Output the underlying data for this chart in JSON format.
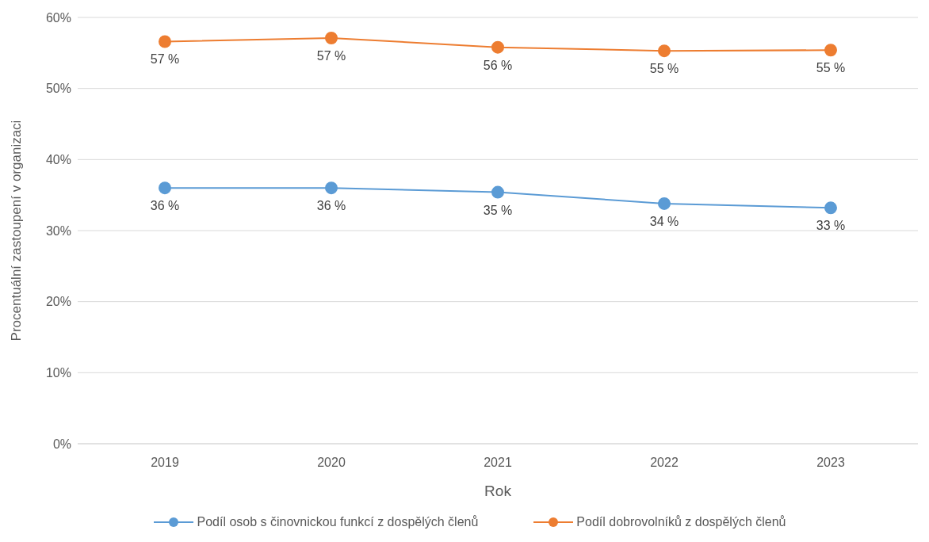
{
  "chart_data": {
    "type": "line",
    "xlabel": "Rok",
    "ylabel": "Procentuální zastoupení v organizaci",
    "categories": [
      "2019",
      "2020",
      "2021",
      "2022",
      "2023"
    ],
    "series": [
      {
        "name": "Podíl osob s činovnickou funkcí z dospělých členů",
        "color": "#5b9bd5",
        "values": [
          36.0,
          36.0,
          35.4,
          33.8,
          33.2
        ],
        "value_labels": [
          "36 %",
          "36 %",
          "35 %",
          "34 %",
          "33 %"
        ]
      },
      {
        "name": "Podíl dobrovolníků z dospělých členů",
        "color": "#ed7d31",
        "values": [
          56.6,
          57.1,
          55.8,
          55.3,
          55.4
        ],
        "value_labels": [
          "57 %",
          "57 %",
          "56 %",
          "55 %",
          "55 %"
        ]
      }
    ],
    "ylim": [
      0,
      60
    ],
    "yticks": [
      {
        "value": 0,
        "label": "0%"
      },
      {
        "value": 10,
        "label": "10%"
      },
      {
        "value": 20,
        "label": "20%"
      },
      {
        "value": 30,
        "label": "30%"
      },
      {
        "value": 40,
        "label": "40%"
      },
      {
        "value": 50,
        "label": "50%"
      },
      {
        "value": 60,
        "label": "60%"
      }
    ],
    "grid": "y",
    "legend": "bottom",
    "marker": "circle",
    "line_style": "solid"
  }
}
